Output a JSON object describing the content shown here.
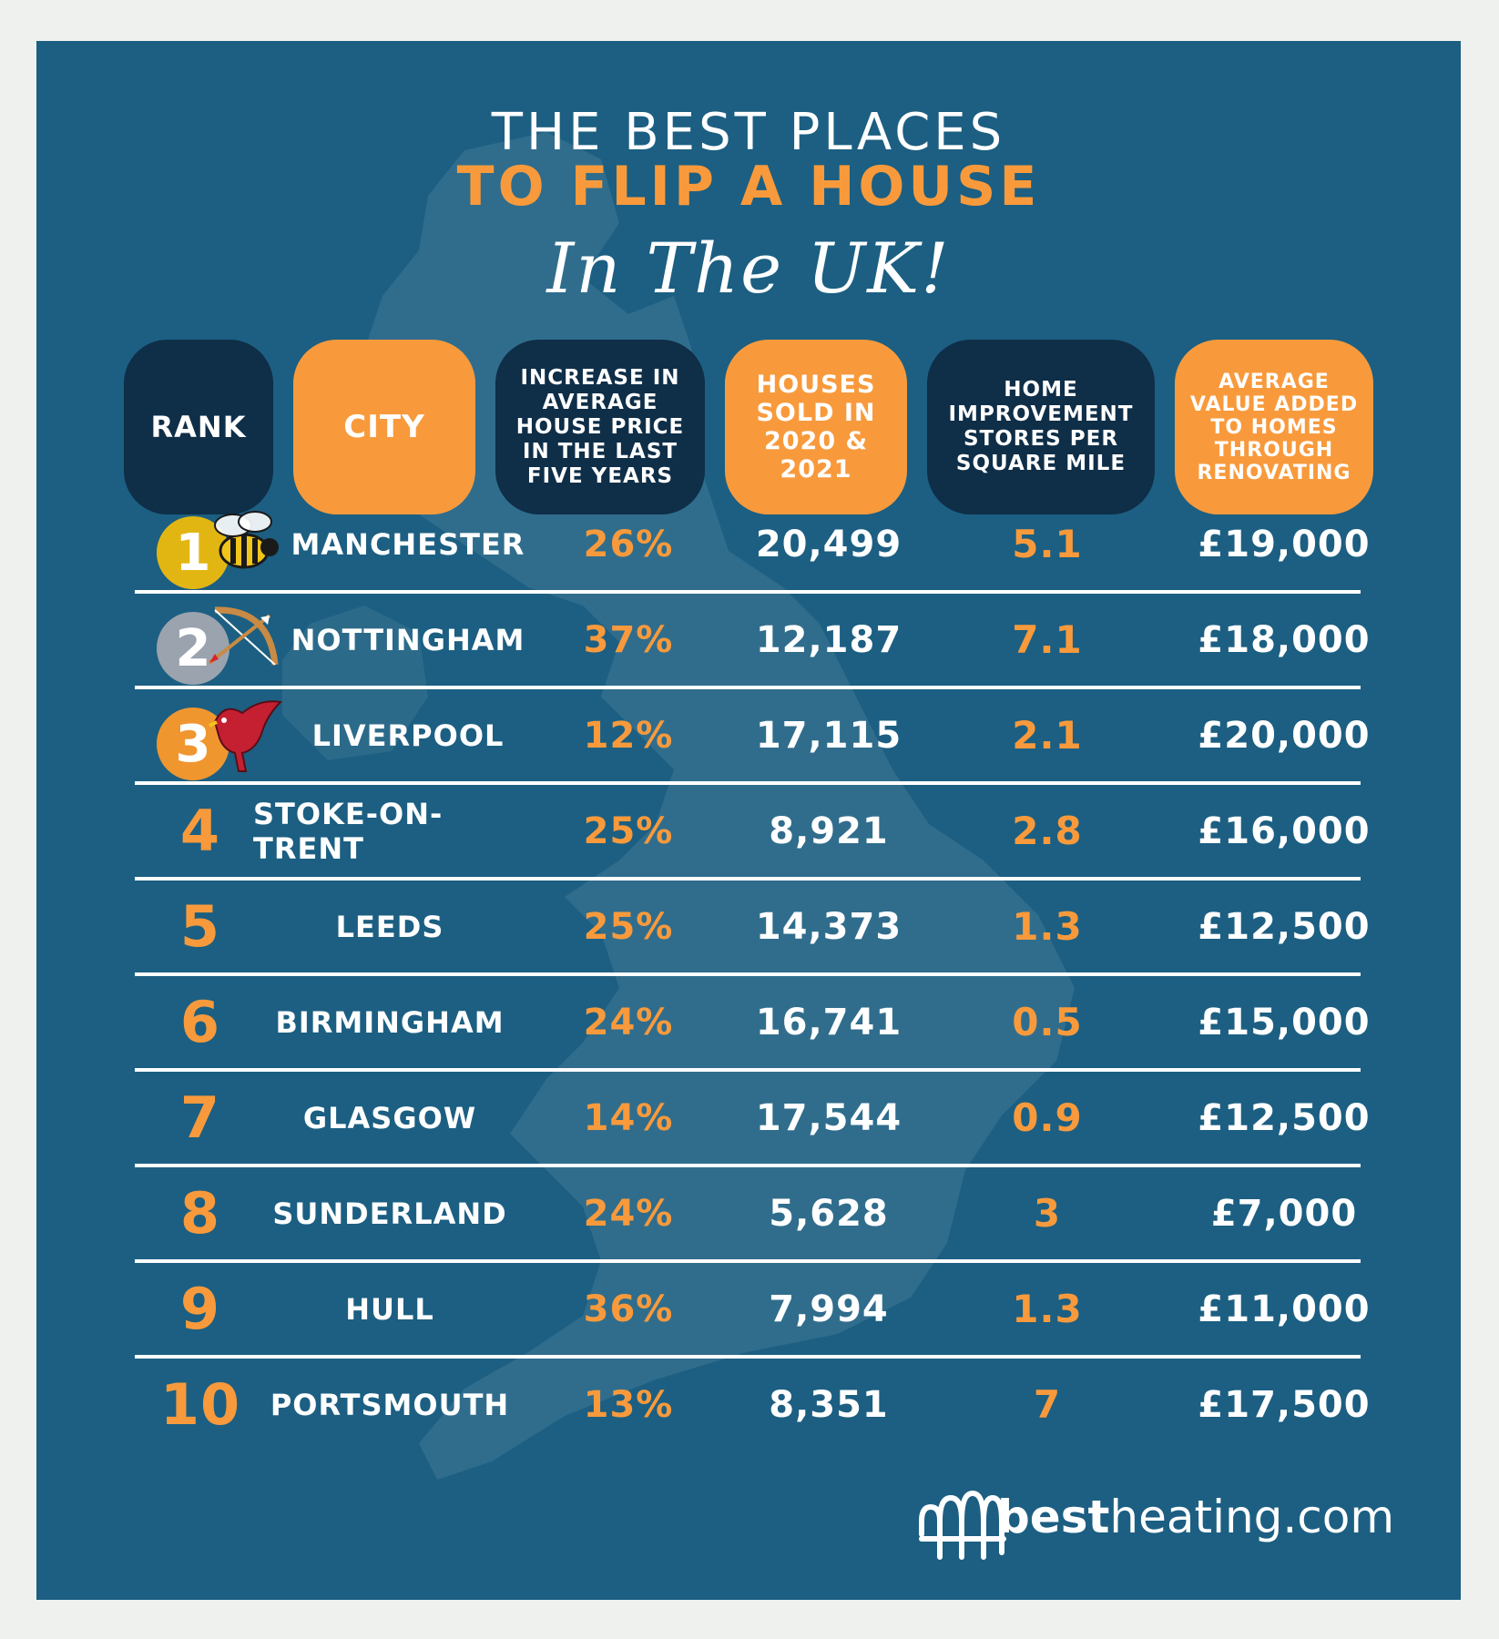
{
  "title": {
    "line1": "THE BEST PLACES",
    "line2": "TO FLIP A HOUSE",
    "script": "In The UK!"
  },
  "headers": [
    {
      "label": "RANK"
    },
    {
      "label": "CITY"
    },
    {
      "label": "INCREASE IN AVERAGE HOUSE PRICE IN THE LAST FIVE YEARS"
    },
    {
      "label": "HOUSES SOLD IN 2020 & 2021"
    },
    {
      "label": "HOME IMPROVEMENT STORES PER SQUARE MILE"
    },
    {
      "label": "AVERAGE VALUE ADDED TO HOMES THROUGH RENOVATING"
    }
  ],
  "rows": [
    {
      "rank": "1",
      "city": "MANCHESTER",
      "increase": "26%",
      "sold": "20,499",
      "stores": "5.1",
      "value": "£19,000",
      "medal_color": "#e2b612",
      "emblem_icon": "bee-icon"
    },
    {
      "rank": "2",
      "city": "NOTTINGHAM",
      "increase": "37%",
      "sold": "12,187",
      "stores": "7.1",
      "value": "£18,000",
      "medal_color": "#9aa3ae",
      "emblem_icon": "bow-and-arrow-icon"
    },
    {
      "rank": "3",
      "city": "LIVERPOOL",
      "increase": "12%",
      "sold": "17,115",
      "stores": "2.1",
      "value": "£20,000",
      "medal_color": "#f0962f",
      "emblem_icon": "liver-bird-icon"
    },
    {
      "rank": "4",
      "city": "STOKE-ON-TRENT",
      "increase": "25%",
      "sold": "8,921",
      "stores": "2.8",
      "value": "£16,000"
    },
    {
      "rank": "5",
      "city": "LEEDS",
      "increase": "25%",
      "sold": "14,373",
      "stores": "1.3",
      "value": "£12,500"
    },
    {
      "rank": "6",
      "city": "BIRMINGHAM",
      "increase": "24%",
      "sold": "16,741",
      "stores": "0.5",
      "value": "£15,000"
    },
    {
      "rank": "7",
      "city": "GLASGOW",
      "increase": "14%",
      "sold": "17,544",
      "stores": "0.9",
      "value": "£12,500"
    },
    {
      "rank": "8",
      "city": "SUNDERLAND",
      "increase": "24%",
      "sold": "5,628",
      "stores": "3",
      "value": "£7,000"
    },
    {
      "rank": "9",
      "city": "HULL",
      "increase": "36%",
      "sold": "7,994",
      "stores": "1.3",
      "value": "£11,000"
    },
    {
      "rank": "10",
      "city": "PORTSMOUTH",
      "increase": "13%",
      "sold": "8,351",
      "stores": "7",
      "value": "£17,500"
    }
  ],
  "brand": {
    "name_bold": "best",
    "name_light": "heating.com",
    "logo_icon": "radiator-logo-icon"
  },
  "colors": {
    "background": "#1c5f82",
    "accent": "#f89a3c",
    "dark": "#0f2e48",
    "text": "#ffffff"
  }
}
